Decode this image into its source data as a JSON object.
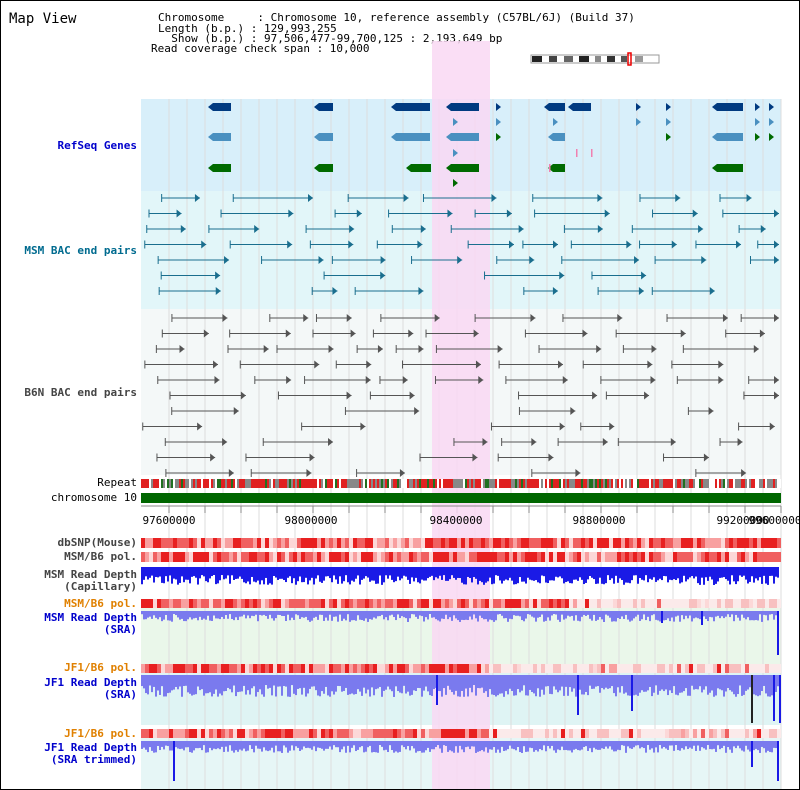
{
  "window": {
    "title": "Map View"
  },
  "info": {
    "line1": "Chromosome     : Chromosome 10, reference assembly (C57BL/6J) (Build 37)",
    "line2": "Length (b.p.) : 129,993,255",
    "line3": "  Show (b.p.) : 97,506,477-99,700,125 : 2,193,649 bp",
    "line4": "Read coverage check span : 10,000"
  },
  "tracks": {
    "refseq": "RefSeq Genes",
    "msm_bac": "MSM BAC end pairs",
    "b6n_bac": "B6N BAC end pairs",
    "repeat": "Repeat",
    "chrom": "chromosome 10",
    "dbsnp": "dbSNP(Mouse)",
    "msm_pol1": "MSM/B6 pol.",
    "msm_depth_cap": "MSM Read Depth",
    "msm_depth_cap2": "(Capillary)",
    "msm_pol2": "MSM/B6 pol.",
    "msm_depth_sra": "MSM Read Depth",
    "msm_depth_sra2": "(SRA)",
    "jf1_pol1": "JF1/B6 pol.",
    "jf1_depth_sra": "JF1 Read Depth",
    "jf1_depth_sra2": "(SRA)",
    "jf1_pol2": "JF1/B6 pol.",
    "jf1_depth_trim": "JF1 Read Depth",
    "jf1_depth_trim2": "(SRA trimmed)"
  },
  "axis": {
    "ticks": [
      "97600000",
      "98000000",
      "98400000",
      "98800000",
      "99200000",
      "99600000"
    ]
  },
  "colors": {
    "refseq_bg": "#d8effa",
    "highlight": "#f9d8f3",
    "gene_dark": "#003a80",
    "gene_mid": "#4a90c0",
    "gene_green": "#006a00",
    "bac_teal": "#1a6e8e",
    "bac_gray": "#555555",
    "chrom_green": "#006600",
    "snp_red": "#e63a3a",
    "depth_blue": "#1a1ae6",
    "depth_light": "#7a7aee"
  }
}
